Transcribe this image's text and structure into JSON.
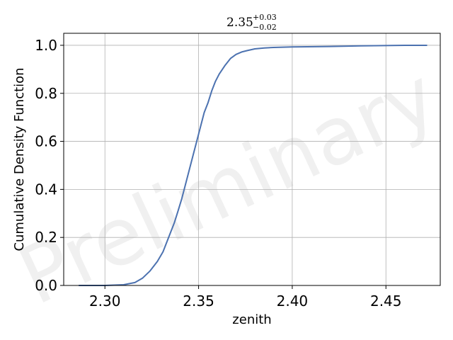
{
  "chart_data": {
    "type": "line",
    "title": {
      "value": "2.35",
      "upper_error": "+0.03",
      "lower_error": "−0.02"
    },
    "xlabel": "zenith",
    "ylabel": "Cumulative Density Function",
    "xlim": [
      2.278,
      2.479
    ],
    "ylim": [
      0.0,
      1.05
    ],
    "xticks": [
      2.3,
      2.35,
      2.4,
      2.45
    ],
    "xtick_labels": [
      "2.30",
      "2.35",
      "2.40",
      "2.45"
    ],
    "yticks": [
      0.0,
      0.2,
      0.4,
      0.6,
      0.8,
      1.0
    ],
    "ytick_labels": [
      "0.0",
      "0.2",
      "0.4",
      "0.6",
      "0.8",
      "1.0"
    ],
    "grid": true,
    "watermark": "Preliminary",
    "colors": {
      "line": "#4c72b0",
      "grid": "#b0b0b0"
    },
    "series": [
      {
        "x": [
          2.286,
          2.3,
          2.31,
          2.316,
          2.32,
          2.324,
          2.328,
          2.331,
          2.334,
          2.337,
          2.339,
          2.341,
          2.343,
          2.345,
          2.347,
          2.349,
          2.351,
          2.353,
          2.355,
          2.357,
          2.359,
          2.361,
          2.364,
          2.367,
          2.37,
          2.373,
          2.376,
          2.38,
          2.385,
          2.39,
          2.4,
          2.42,
          2.44,
          2.46,
          2.472
        ],
        "y": [
          0.0,
          0.0,
          0.003,
          0.012,
          0.03,
          0.06,
          0.1,
          0.14,
          0.2,
          0.26,
          0.31,
          0.36,
          0.42,
          0.48,
          0.54,
          0.6,
          0.66,
          0.72,
          0.76,
          0.81,
          0.85,
          0.88,
          0.915,
          0.945,
          0.962,
          0.972,
          0.978,
          0.985,
          0.989,
          0.991,
          0.993,
          0.995,
          0.998,
          1.0,
          1.0
        ]
      }
    ]
  }
}
